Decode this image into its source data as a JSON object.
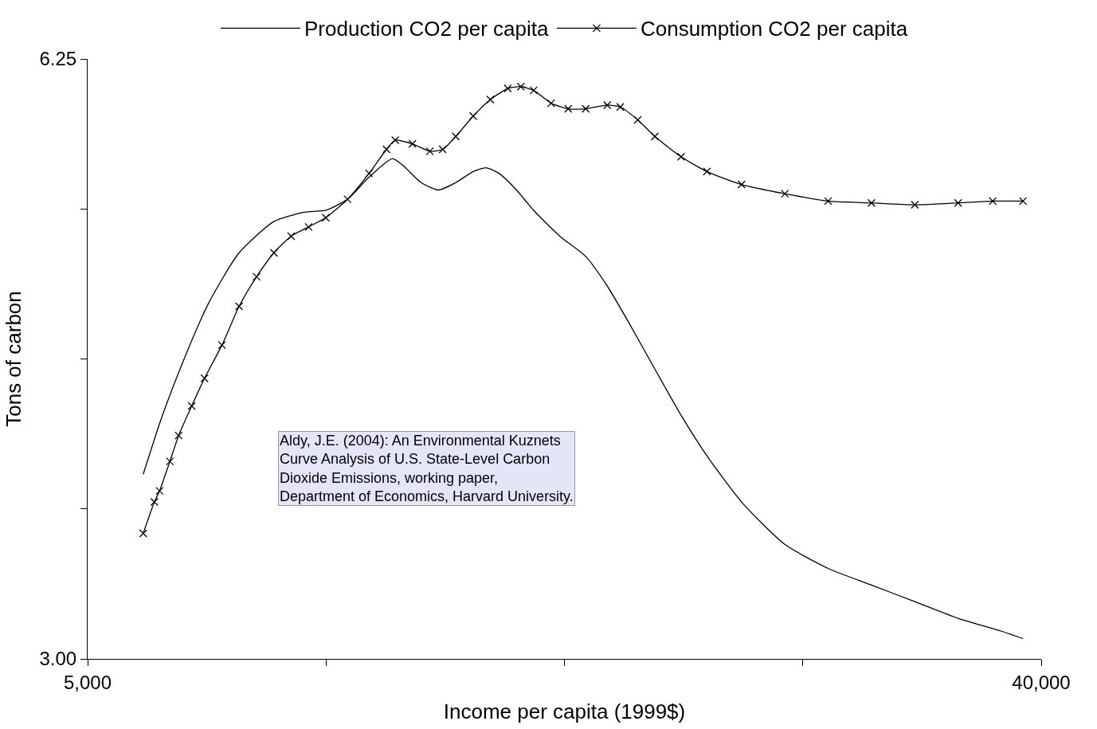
{
  "chart_data": {
    "type": "line",
    "xlabel": "Income per capita (1999$)",
    "ylabel": "Tons of carbon",
    "xlim": [
      5000,
      40000
    ],
    "xticks": [
      {
        "value": 5000,
        "label": "5,000"
      },
      {
        "value": 13750,
        "label": null
      },
      {
        "value": 22500,
        "label": null
      },
      {
        "value": 31250,
        "label": null
      },
      {
        "value": 40000,
        "label": "40,000"
      }
    ],
    "ylim": [
      3.0,
      6.25
    ],
    "yticks": [
      {
        "value": 3.0,
        "label": "3.00"
      },
      {
        "value": 3.8125,
        "label": null
      },
      {
        "value": 4.625,
        "label": null
      },
      {
        "value": 5.4375,
        "label": null
      },
      {
        "value": 6.25,
        "label": "6.25"
      }
    ],
    "grid": false,
    "legend": "top",
    "series": [
      {
        "name": "Production CO2 per capita",
        "color": "#000000",
        "marker": "none",
        "x": [
          7040,
          7700,
          8500,
          9450,
          10560,
          11840,
          12950,
          13740,
          14540,
          15330,
          16190,
          16600,
          17240,
          17880,
          18510,
          19150,
          19620,
          20100,
          20740,
          21370,
          22330,
          23280,
          24070,
          24870,
          25820,
          26780,
          27730,
          29000,
          30590,
          32180,
          33770,
          35360,
          36950,
          38540,
          39330
        ],
        "values": [
          4.0,
          4.3,
          4.61,
          4.93,
          5.2,
          5.37,
          5.42,
          5.43,
          5.49,
          5.61,
          5.71,
          5.67,
          5.58,
          5.54,
          5.58,
          5.64,
          5.66,
          5.63,
          5.54,
          5.43,
          5.29,
          5.18,
          5.02,
          4.82,
          4.57,
          4.32,
          4.1,
          3.85,
          3.62,
          3.49,
          3.4,
          3.31,
          3.22,
          3.15,
          3.11
        ]
      },
      {
        "name": "Consumption CO2 per capita",
        "color": "#000000",
        "marker": "cross",
        "x": [
          7040,
          7450,
          7640,
          8020,
          8340,
          8820,
          9290,
          9930,
          10560,
          11200,
          11840,
          12470,
          13110,
          13740,
          14540,
          15330,
          15970,
          16290,
          16920,
          17560,
          18030,
          18510,
          19150,
          19780,
          20420,
          20900,
          21370,
          22010,
          22640,
          23280,
          24070,
          24550,
          25190,
          25820,
          26780,
          27730,
          29000,
          30590,
          32180,
          33770,
          35360,
          36950,
          38220,
          39330
        ],
        "values": [
          3.68,
          3.85,
          3.91,
          4.07,
          4.21,
          4.37,
          4.52,
          4.7,
          4.91,
          5.07,
          5.2,
          5.29,
          5.34,
          5.39,
          5.49,
          5.63,
          5.76,
          5.81,
          5.79,
          5.75,
          5.76,
          5.83,
          5.94,
          6.03,
          6.09,
          6.1,
          6.08,
          6.01,
          5.98,
          5.98,
          6.0,
          5.99,
          5.92,
          5.83,
          5.72,
          5.64,
          5.57,
          5.52,
          5.48,
          5.47,
          5.46,
          5.47,
          5.48,
          5.48
        ]
      }
    ],
    "annotations": [
      "Aldy, J.E. (2004): An Environmental Kuznets\nCurve Analysis of U.S. State-Level Carbon\nDioxide Emissions, working paper,\nDepartment of Economics, Harvard University."
    ]
  }
}
